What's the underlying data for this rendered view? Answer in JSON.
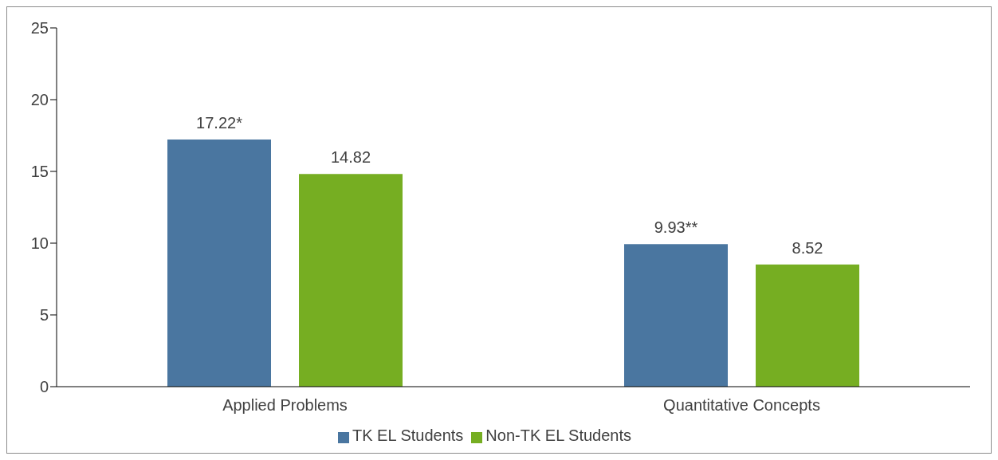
{
  "chart_data": {
    "type": "bar",
    "categories": [
      "Applied Problems",
      "Quantitative Concepts"
    ],
    "series": [
      {
        "name": "TK EL Students",
        "color": "#4a76a0",
        "values": [
          17.22,
          9.93
        ],
        "value_labels": [
          "17.22*",
          "9.93**"
        ]
      },
      {
        "name": "Non-TK EL Students",
        "color": "#76ae22",
        "values": [
          14.82,
          8.52
        ],
        "value_labels": [
          "14.82",
          "8.52"
        ]
      }
    ],
    "ylim": [
      0,
      25
    ],
    "yticks": [
      0,
      5,
      10,
      15,
      20,
      25
    ],
    "grid": false,
    "legend": "bottom"
  }
}
